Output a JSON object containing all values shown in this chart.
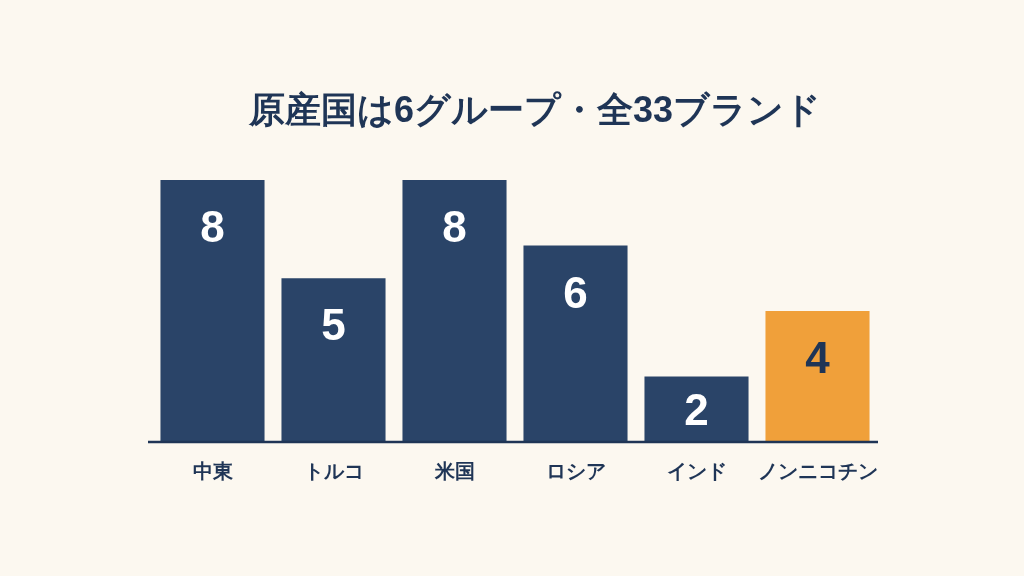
{
  "chart_data": {
    "type": "bar",
    "title": "原産国は6グループ・全33ブランド",
    "categories": [
      "中東",
      "トルコ",
      "米国",
      "ロシア",
      "インド",
      "ノンニコチン"
    ],
    "values": [
      8,
      5,
      8,
      6,
      2,
      4
    ],
    "colors": [
      "#2a4468",
      "#2a4468",
      "#2a4468",
      "#2a4468",
      "#2a4468",
      "#f0a03a"
    ],
    "data_labels": true
  }
}
